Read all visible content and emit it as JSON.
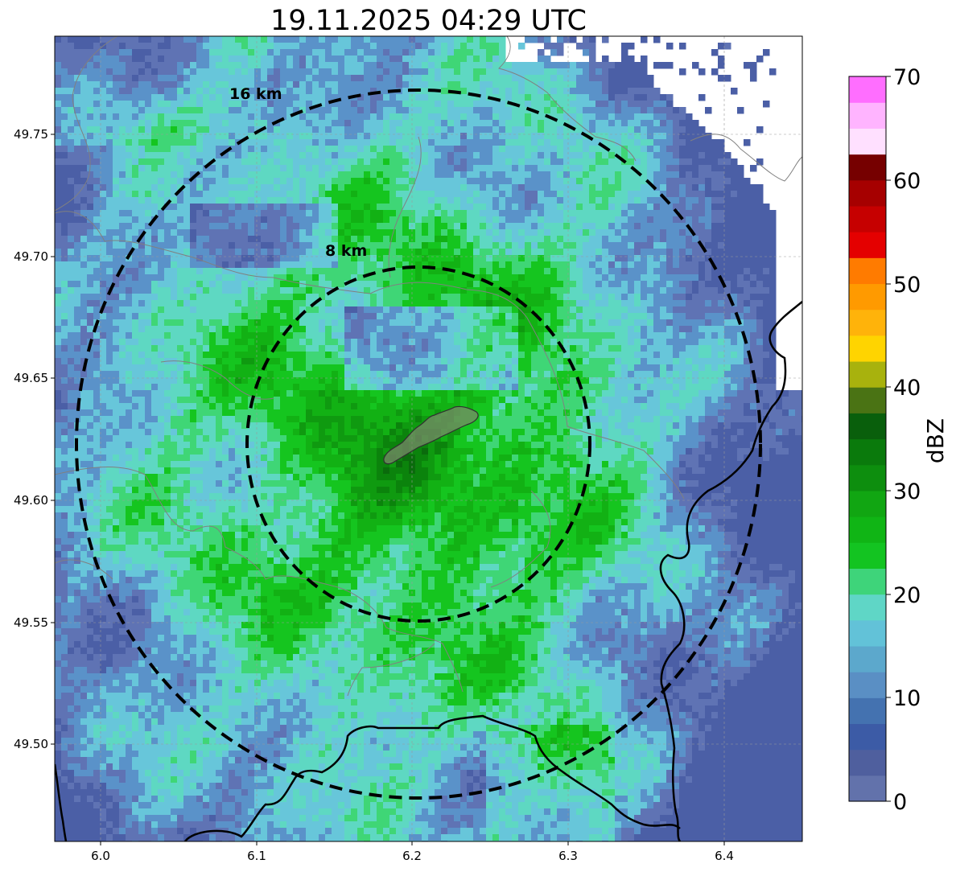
{
  "title": "19.11.2025 04:29 UTC",
  "axes": {
    "x_ticks": [
      "6.0",
      "6.1",
      "6.2",
      "6.3",
      "6.4"
    ],
    "y_ticks": [
      "49.75",
      "49.70",
      "49.65",
      "49.60",
      "49.55",
      "49.50"
    ],
    "xlim": [
      5.97,
      6.45
    ],
    "ylim": [
      49.46,
      49.79
    ],
    "grid": true
  },
  "range_rings": [
    {
      "label": "16 km",
      "radius_km": 16
    },
    {
      "label": "8 km",
      "radius_km": 8
    }
  ],
  "radar_center": {
    "lon": 6.205,
    "lat": 49.6225
  },
  "colorbar": {
    "label": "dBZ",
    "ticks": [
      "0",
      "10",
      "20",
      "30",
      "40",
      "50",
      "60",
      "70"
    ],
    "min": 0,
    "max": 70,
    "step": 2.5,
    "colors": [
      "#6272ab",
      "#4f5f9e",
      "#3c5ba6",
      "#4472b0",
      "#5a8fc4",
      "#5ca8cc",
      "#62c2d8",
      "#5fd6c6",
      "#3ed47a",
      "#13c421",
      "#10b515",
      "#11a612",
      "#0d8e0e",
      "#0a7a0c",
      "#095f0c",
      "#4a7314",
      "#a8b20d",
      "#ffd400",
      "#ffb30a",
      "#ff9a00",
      "#ff7b00",
      "#e40000",
      "#c60000",
      "#a60000",
      "#760000",
      "#ffe0ff",
      "#ffb4ff",
      "#ff6eff",
      "#e83ae8"
    ]
  },
  "reflectivity_palette": [
    "#4b5fa6",
    "#5f73b4",
    "#5a92c9",
    "#67c6da",
    "#5ed8c2",
    "#3fd676",
    "#15c51f",
    "#12b114",
    "#0f9a10",
    "#0b830c",
    "#0a6b0c"
  ]
}
